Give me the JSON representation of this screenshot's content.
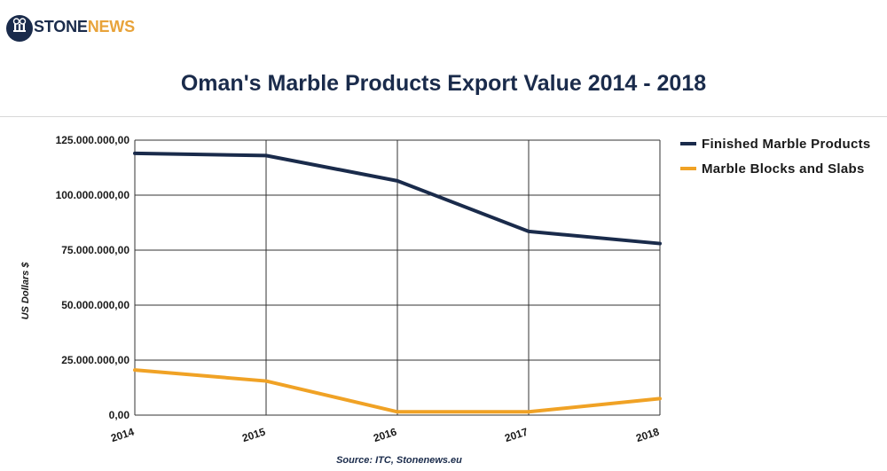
{
  "brand": {
    "stone": "STONE",
    "news": "NEWS",
    "primary_color": "#1a2b4b",
    "accent_color": "#e8a33a"
  },
  "source": "Source: ITC, Stonenews.eu",
  "chart_data": {
    "type": "line",
    "title": "Oman's Marble Products Export Value 2014 - 2018",
    "xlabel": "",
    "ylabel": "US Dollars $",
    "categories": [
      "2014",
      "2015",
      "2016",
      "2017",
      "2018"
    ],
    "ylim": [
      0,
      125000000
    ],
    "yticks": [
      0,
      25000000,
      50000000,
      75000000,
      100000000,
      125000000
    ],
    "ytick_labels": [
      "0,00",
      "25.000.000,00",
      "50.000.000,00",
      "75.000.000,00",
      "100.000.000,00",
      "125.000.000,00"
    ],
    "grid": true,
    "legend_position": "right",
    "series": [
      {
        "name": "Finished Marble Products",
        "color": "#1a2b4b",
        "values": [
          119000000,
          118000000,
          106500000,
          83500000,
          78000000
        ]
      },
      {
        "name": "Marble Blocks and Slabs",
        "color": "#f0a225",
        "values": [
          20500000,
          15500000,
          1500000,
          1500000,
          7500000
        ]
      }
    ]
  }
}
